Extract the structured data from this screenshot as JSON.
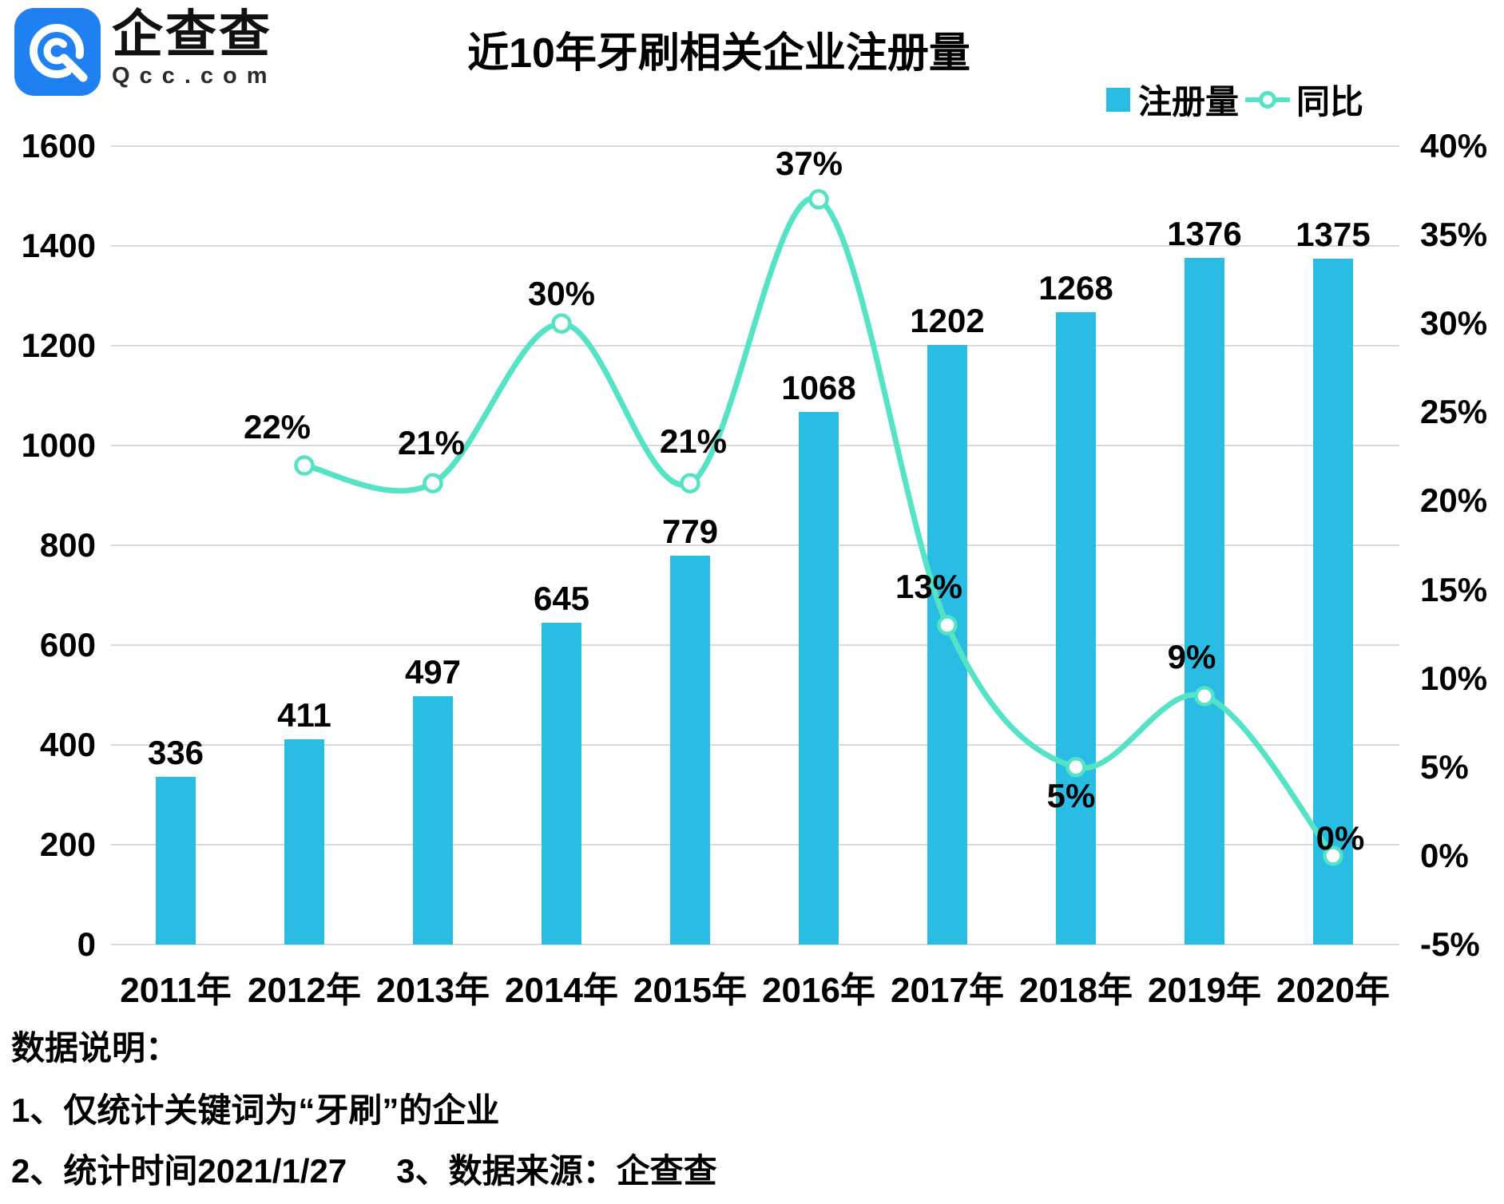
{
  "brand": {
    "name_cn": "企查查",
    "domain": "Qcc.com",
    "logo_blue": "#1f80f2"
  },
  "title": "近10年牙刷相关企业注册量",
  "legend": {
    "bar_label": "注册量",
    "line_label": "同比"
  },
  "colors": {
    "bar": "#2abde3",
    "line": "#54e3c4",
    "marker_fill": "#ffffff",
    "grid": "#d9d9d9",
    "text": "#000000"
  },
  "chart_data": {
    "type": "bar+line",
    "title": "近10年牙刷相关企业注册量",
    "categories": [
      "2011年",
      "2012年",
      "2013年",
      "2014年",
      "2015年",
      "2016年",
      "2017年",
      "2018年",
      "2019年",
      "2020年"
    ],
    "series": [
      {
        "name": "注册量",
        "type": "bar",
        "axis": "left",
        "values": [
          336,
          411,
          497,
          645,
          779,
          1068,
          1202,
          1268,
          1376,
          1375
        ]
      },
      {
        "name": "同比",
        "type": "line",
        "axis": "right",
        "unit": "%",
        "values": [
          null,
          22,
          21,
          30,
          21,
          37,
          13,
          5,
          9,
          0
        ],
        "labels": [
          "",
          "22%",
          "21%",
          "30%",
          "21%",
          "37%",
          "13%",
          "5%",
          "9%",
          "0%"
        ]
      }
    ],
    "left_axis": {
      "min": 0,
      "max": 1600,
      "ticks": [
        1600,
        1400,
        1200,
        1000,
        800,
        600,
        400,
        200,
        0
      ]
    },
    "right_axis": {
      "min": -5,
      "max": 40,
      "ticks": [
        "40%",
        "35%",
        "30%",
        "25%",
        "20%",
        "15%",
        "10%",
        "5%",
        "0%",
        "-5%"
      ]
    },
    "grid": true,
    "legend_position": "top-right"
  },
  "notes": {
    "heading": "数据说明：",
    "line1": "1、仅统计关键词为“牙刷”的企业",
    "line2a": "2、统计时间2021/1/27",
    "line2b": "3、数据来源：企查查"
  }
}
